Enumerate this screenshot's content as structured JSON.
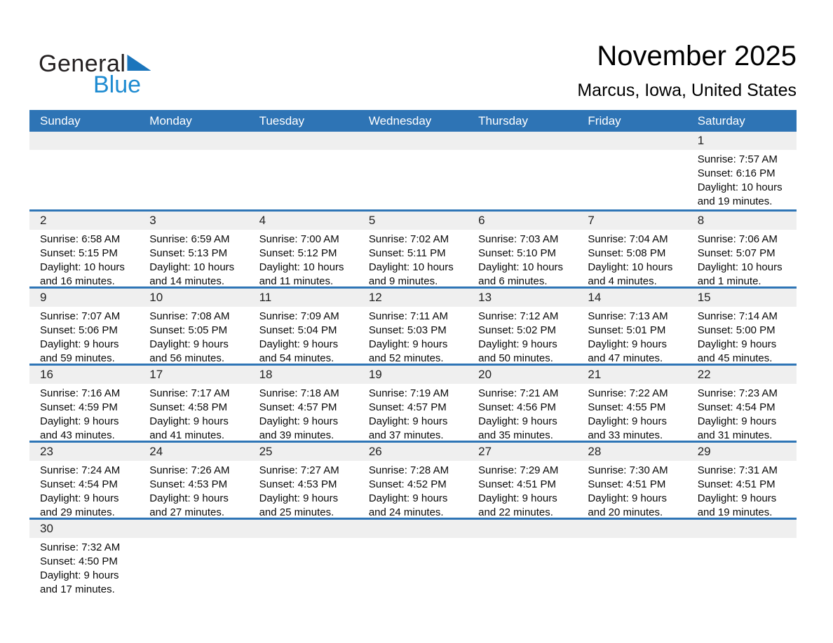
{
  "logo": {
    "word1": "General",
    "word2": "Blue"
  },
  "header": {
    "title": "November 2025",
    "subtitle": "Marcus, Iowa, United States"
  },
  "colors": {
    "accent_blue": "#2E74B5",
    "separator_blue": "#2E75B6",
    "band_gray": "#EFEFEF",
    "logo_blue": "#1E8BD1",
    "logo_triangle_blue": "#1B75BC"
  },
  "weekdays": [
    "Sunday",
    "Monday",
    "Tuesday",
    "Wednesday",
    "Thursday",
    "Friday",
    "Saturday"
  ],
  "weeks": [
    [
      null,
      null,
      null,
      null,
      null,
      null,
      {
        "day": "1",
        "lines": [
          "Sunrise: 7:57 AM",
          "Sunset: 6:16 PM",
          "Daylight: 10 hours",
          "and 19 minutes."
        ]
      }
    ],
    [
      {
        "day": "2",
        "lines": [
          "Sunrise: 6:58 AM",
          "Sunset: 5:15 PM",
          "Daylight: 10 hours",
          "and 16 minutes."
        ]
      },
      {
        "day": "3",
        "lines": [
          "Sunrise: 6:59 AM",
          "Sunset: 5:13 PM",
          "Daylight: 10 hours",
          "and 14 minutes."
        ]
      },
      {
        "day": "4",
        "lines": [
          "Sunrise: 7:00 AM",
          "Sunset: 5:12 PM",
          "Daylight: 10 hours",
          "and 11 minutes."
        ]
      },
      {
        "day": "5",
        "lines": [
          "Sunrise: 7:02 AM",
          "Sunset: 5:11 PM",
          "Daylight: 10 hours",
          "and 9 minutes."
        ]
      },
      {
        "day": "6",
        "lines": [
          "Sunrise: 7:03 AM",
          "Sunset: 5:10 PM",
          "Daylight: 10 hours",
          "and 6 minutes."
        ]
      },
      {
        "day": "7",
        "lines": [
          "Sunrise: 7:04 AM",
          "Sunset: 5:08 PM",
          "Daylight: 10 hours",
          "and 4 minutes."
        ]
      },
      {
        "day": "8",
        "lines": [
          "Sunrise: 7:06 AM",
          "Sunset: 5:07 PM",
          "Daylight: 10 hours",
          "and 1 minute."
        ]
      }
    ],
    [
      {
        "day": "9",
        "lines": [
          "Sunrise: 7:07 AM",
          "Sunset: 5:06 PM",
          "Daylight: 9 hours",
          "and 59 minutes."
        ]
      },
      {
        "day": "10",
        "lines": [
          "Sunrise: 7:08 AM",
          "Sunset: 5:05 PM",
          "Daylight: 9 hours",
          "and 56 minutes."
        ]
      },
      {
        "day": "11",
        "lines": [
          "Sunrise: 7:09 AM",
          "Sunset: 5:04 PM",
          "Daylight: 9 hours",
          "and 54 minutes."
        ]
      },
      {
        "day": "12",
        "lines": [
          "Sunrise: 7:11 AM",
          "Sunset: 5:03 PM",
          "Daylight: 9 hours",
          "and 52 minutes."
        ]
      },
      {
        "day": "13",
        "lines": [
          "Sunrise: 7:12 AM",
          "Sunset: 5:02 PM",
          "Daylight: 9 hours",
          "and 50 minutes."
        ]
      },
      {
        "day": "14",
        "lines": [
          "Sunrise: 7:13 AM",
          "Sunset: 5:01 PM",
          "Daylight: 9 hours",
          "and 47 minutes."
        ]
      },
      {
        "day": "15",
        "lines": [
          "Sunrise: 7:14 AM",
          "Sunset: 5:00 PM",
          "Daylight: 9 hours",
          "and 45 minutes."
        ]
      }
    ],
    [
      {
        "day": "16",
        "lines": [
          "Sunrise: 7:16 AM",
          "Sunset: 4:59 PM",
          "Daylight: 9 hours",
          "and 43 minutes."
        ]
      },
      {
        "day": "17",
        "lines": [
          "Sunrise: 7:17 AM",
          "Sunset: 4:58 PM",
          "Daylight: 9 hours",
          "and 41 minutes."
        ]
      },
      {
        "day": "18",
        "lines": [
          "Sunrise: 7:18 AM",
          "Sunset: 4:57 PM",
          "Daylight: 9 hours",
          "and 39 minutes."
        ]
      },
      {
        "day": "19",
        "lines": [
          "Sunrise: 7:19 AM",
          "Sunset: 4:57 PM",
          "Daylight: 9 hours",
          "and 37 minutes."
        ]
      },
      {
        "day": "20",
        "lines": [
          "Sunrise: 7:21 AM",
          "Sunset: 4:56 PM",
          "Daylight: 9 hours",
          "and 35 minutes."
        ]
      },
      {
        "day": "21",
        "lines": [
          "Sunrise: 7:22 AM",
          "Sunset: 4:55 PM",
          "Daylight: 9 hours",
          "and 33 minutes."
        ]
      },
      {
        "day": "22",
        "lines": [
          "Sunrise: 7:23 AM",
          "Sunset: 4:54 PM",
          "Daylight: 9 hours",
          "and 31 minutes."
        ]
      }
    ],
    [
      {
        "day": "23",
        "lines": [
          "Sunrise: 7:24 AM",
          "Sunset: 4:54 PM",
          "Daylight: 9 hours",
          "and 29 minutes."
        ]
      },
      {
        "day": "24",
        "lines": [
          "Sunrise: 7:26 AM",
          "Sunset: 4:53 PM",
          "Daylight: 9 hours",
          "and 27 minutes."
        ]
      },
      {
        "day": "25",
        "lines": [
          "Sunrise: 7:27 AM",
          "Sunset: 4:53 PM",
          "Daylight: 9 hours",
          "and 25 minutes."
        ]
      },
      {
        "day": "26",
        "lines": [
          "Sunrise: 7:28 AM",
          "Sunset: 4:52 PM",
          "Daylight: 9 hours",
          "and 24 minutes."
        ]
      },
      {
        "day": "27",
        "lines": [
          "Sunrise: 7:29 AM",
          "Sunset: 4:51 PM",
          "Daylight: 9 hours",
          "and 22 minutes."
        ]
      },
      {
        "day": "28",
        "lines": [
          "Sunrise: 7:30 AM",
          "Sunset: 4:51 PM",
          "Daylight: 9 hours",
          "and 20 minutes."
        ]
      },
      {
        "day": "29",
        "lines": [
          "Sunrise: 7:31 AM",
          "Sunset: 4:51 PM",
          "Daylight: 9 hours",
          "and 19 minutes."
        ]
      }
    ],
    [
      {
        "day": "30",
        "lines": [
          "Sunrise: 7:32 AM",
          "Sunset: 4:50 PM",
          "Daylight: 9 hours",
          "and 17 minutes."
        ]
      },
      null,
      null,
      null,
      null,
      null,
      null
    ]
  ]
}
